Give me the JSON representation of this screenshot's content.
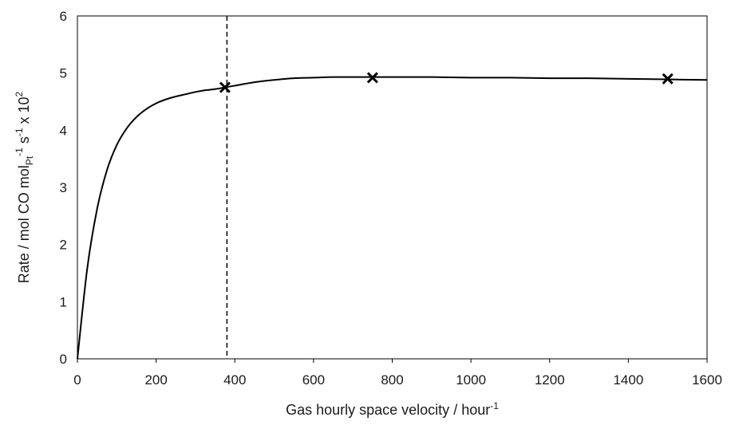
{
  "chart_data": {
    "type": "line",
    "title": "",
    "xlabel": "Gas hourly space velocity / hour",
    "xlabel_sup": "-1",
    "ylabel": {
      "part1": "Rate / mol CO mol",
      "sub": "Pt",
      "sup1": "-1",
      "part2": " s",
      "sup2": "-1",
      "part3": " x 10",
      "sup3": "2"
    },
    "xlim": [
      0,
      1600
    ],
    "ylim": [
      0,
      6
    ],
    "xticks": [
      "0",
      "200",
      "400",
      "600",
      "800",
      "1000",
      "1200",
      "1400",
      "1600"
    ],
    "yticks": [
      "0",
      "1",
      "2",
      "3",
      "4",
      "5",
      "6"
    ],
    "grid": false,
    "legend": "none",
    "series": [
      {
        "type": "line",
        "x": [
          0,
          25,
          50,
          75,
          100,
          125,
          150,
          175,
          200,
          225,
          250,
          275,
          300,
          325,
          350,
          375,
          400,
          450,
          500,
          550,
          600,
          650,
          700,
          750,
          800,
          850,
          900,
          1000,
          1100,
          1200,
          1300,
          1400,
          1500,
          1600
        ],
        "y": [
          0.0,
          1.58,
          2.62,
          3.3,
          3.74,
          4.03,
          4.23,
          4.37,
          4.47,
          4.54,
          4.59,
          4.63,
          4.67,
          4.7,
          4.72,
          4.75,
          4.78,
          4.84,
          4.88,
          4.91,
          4.92,
          4.93,
          4.93,
          4.93,
          4.93,
          4.93,
          4.93,
          4.92,
          4.92,
          4.91,
          4.91,
          4.9,
          4.89,
          4.88
        ]
      },
      {
        "type": "scatter",
        "marker": "x",
        "x": [
          375,
          750,
          1500
        ],
        "y": [
          4.75,
          4.92,
          4.9
        ]
      }
    ],
    "annotations": [
      {
        "type": "vertical-dashed-line",
        "x": 380
      }
    ],
    "colors": {
      "line": "#000000",
      "marker": "#000000",
      "axis": "#000000"
    }
  }
}
